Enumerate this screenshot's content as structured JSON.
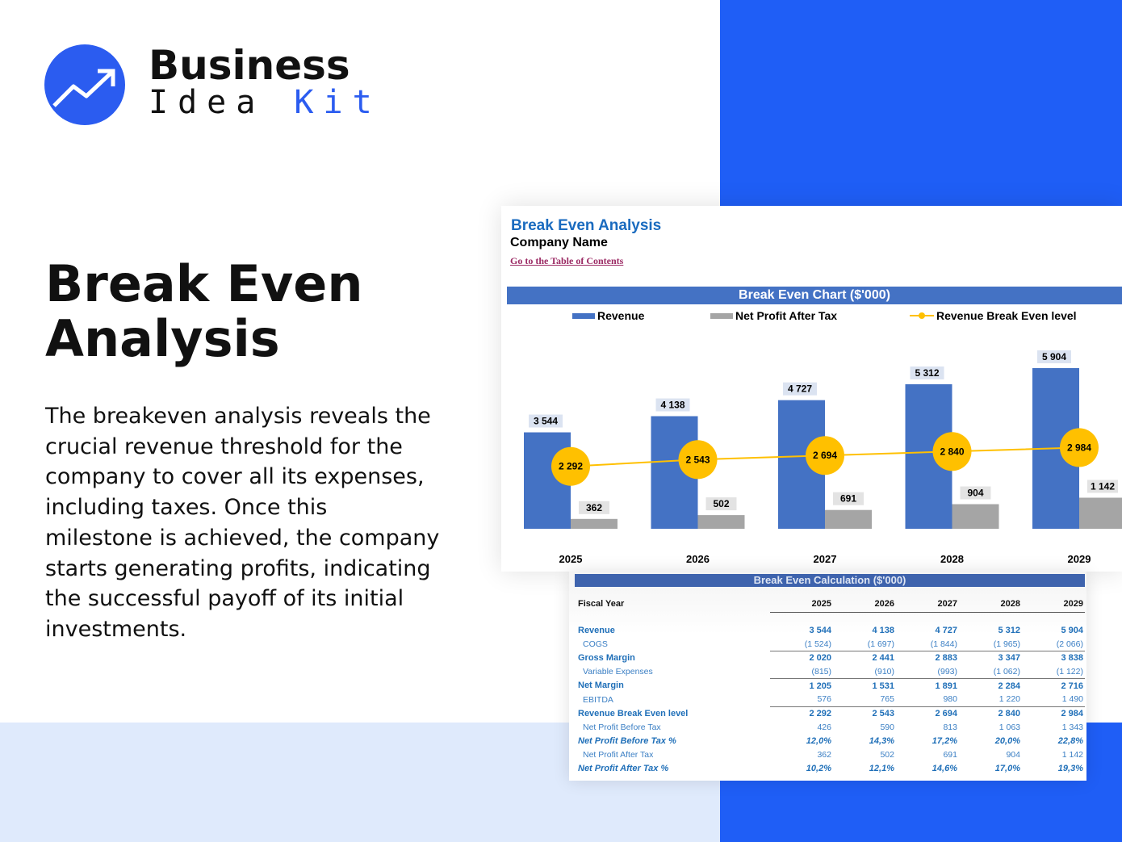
{
  "brand": {
    "line1": "Business",
    "line2a": "Idea",
    "line2b": "Kit",
    "accent": "#2b5cf0"
  },
  "hero": {
    "title": "Break Even Analysis",
    "description": "The breakeven analysis reveals the crucial revenue threshold for the company to cover all its expenses, including taxes. Once this milestone is achieved, the company starts generating profits, indicating the successful payoff of its initial investments."
  },
  "sheet": {
    "title": "Break Even Analysis",
    "company": "Company Name",
    "toc_link": "Go to the Table of Contents"
  },
  "chart_data": {
    "type": "bar",
    "title": "Break Even Chart ($'000)",
    "categories": [
      "2025",
      "2026",
      "2027",
      "2028",
      "2029"
    ],
    "series": [
      {
        "name": "Revenue",
        "type": "bar",
        "color": "#4472c4",
        "values": [
          3544,
          4138,
          4727,
          5312,
          5904
        ],
        "labels": [
          "3 544",
          "4 138",
          "4 727",
          "5 312",
          "5 904"
        ]
      },
      {
        "name": "Net Profit After Tax",
        "type": "bar",
        "color": "#a5a5a5",
        "values": [
          362,
          502,
          691,
          904,
          1142
        ],
        "labels": [
          "362",
          "502",
          "691",
          "904",
          "1 142"
        ]
      },
      {
        "name": "Revenue Break Even level",
        "type": "line",
        "color": "#ffc000",
        "values": [
          2292,
          2543,
          2694,
          2840,
          2984
        ],
        "labels": [
          "2 292",
          "2 543",
          "2 694",
          "2 840",
          "2 984"
        ]
      }
    ],
    "legend": "top",
    "grid": false
  },
  "table": {
    "title": "Break Even Calculation ($'000)",
    "header": [
      "Fiscal Year",
      "2025",
      "2026",
      "2027",
      "2028",
      "2029"
    ],
    "rows": [
      {
        "label": "Revenue",
        "values": [
          "3 544",
          "4 138",
          "4 727",
          "5 312",
          "5 904"
        ]
      },
      {
        "label": "COGS",
        "values": [
          "(1 524)",
          "(1 697)",
          "(1 844)",
          "(1 965)",
          "(2 066)"
        ]
      },
      {
        "label": "Gross Margin",
        "values": [
          "2 020",
          "2 441",
          "2 883",
          "3 347",
          "3 838"
        ]
      },
      {
        "label": "Variable Expenses",
        "values": [
          "(815)",
          "(910)",
          "(993)",
          "(1 062)",
          "(1 122)"
        ]
      },
      {
        "label": "Net Margin",
        "values": [
          "1 205",
          "1 531",
          "1 891",
          "2 284",
          "2 716"
        ]
      },
      {
        "label": "EBITDA",
        "values": [
          "576",
          "765",
          "980",
          "1 220",
          "1 490"
        ]
      },
      {
        "label": "Revenue Break Even level",
        "values": [
          "2 292",
          "2 543",
          "2 694",
          "2 840",
          "2 984"
        ]
      },
      {
        "label": "Net Profit Before Tax",
        "values": [
          "426",
          "590",
          "813",
          "1 063",
          "1 343"
        ]
      },
      {
        "label": "Net Profit Before Tax %",
        "values": [
          "12,0%",
          "14,3%",
          "17,2%",
          "20,0%",
          "22,8%"
        ]
      },
      {
        "label": "Net Profit After Tax",
        "values": [
          "362",
          "502",
          "691",
          "904",
          "1 142"
        ]
      },
      {
        "label": "Net Profit After Tax %",
        "values": [
          "10,2%",
          "12,1%",
          "14,6%",
          "17,0%",
          "19,3%"
        ]
      }
    ]
  }
}
